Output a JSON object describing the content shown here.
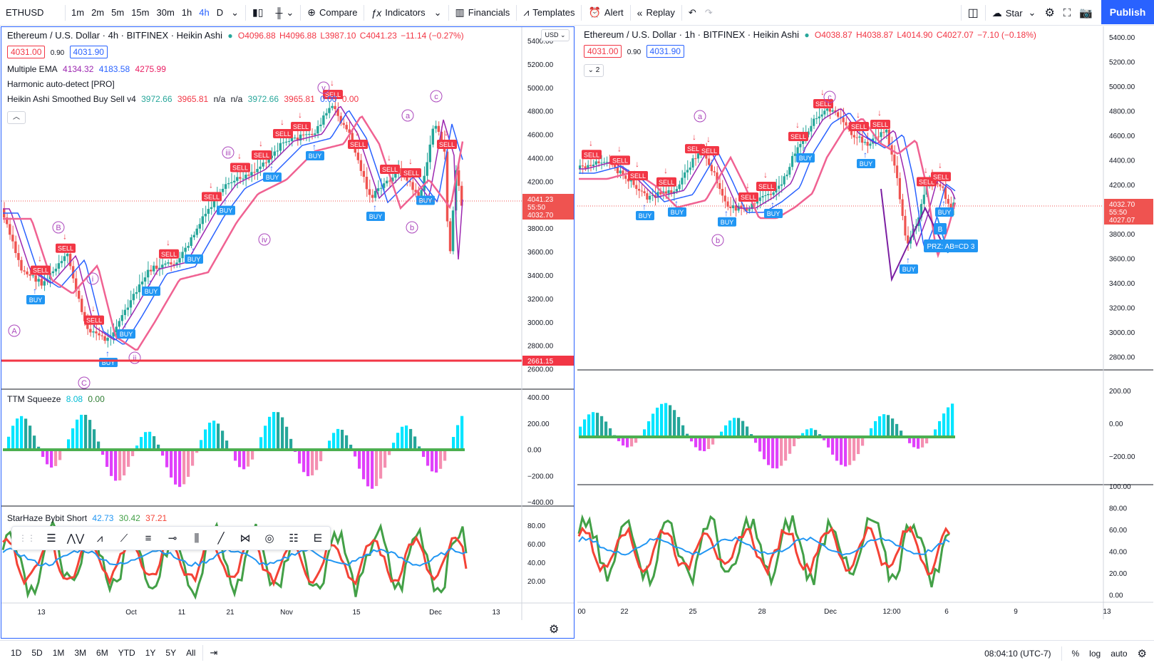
{
  "toolbar": {
    "symbol": "ETHUSD",
    "intervals": [
      "1m",
      "2m",
      "5m",
      "15m",
      "30m",
      "1h",
      "4h",
      "D"
    ],
    "active_interval": "4h",
    "compare": "Compare",
    "indicators": "Indicators",
    "financials": "Financials",
    "templates": "Templates",
    "alert": "Alert",
    "replay": "Replay",
    "star": "Star",
    "publish": "Publish"
  },
  "left_chart": {
    "title": "Ethereum / U.S. Dollar · 4h · BITFINEX · Heikin Ashi",
    "ohlc": {
      "o": "O4096.88",
      "h": "H4096.88",
      "l": "L3987.10",
      "c": "C4041.23",
      "chg": "−11.14 (−0.27%)"
    },
    "bid": "4031.00",
    "spread": "0.90",
    "ask": "4031.90",
    "ema_label": "Multiple EMA",
    "ema_values": [
      "4134.32",
      "4183.58",
      "4275.99"
    ],
    "harmonic_label": "Harmonic auto-detect [PRO]",
    "heikin_label": "Heikin Ashi Smoothed Buy Sell v4",
    "heikin_values": [
      "3972.66",
      "3965.81",
      "n/a",
      "n/a",
      "3972.66",
      "3965.81",
      "0.00",
      "0.00"
    ],
    "currency": "USD",
    "price_axis": [
      "5400.00",
      "5200.00",
      "5000.00",
      "4800.00",
      "4600.00",
      "4400.00",
      "4200.00",
      "4000.00",
      "3800.00",
      "3600.00",
      "3400.00",
      "3200.00",
      "3000.00",
      "2800.00",
      "2600.00"
    ],
    "last_price": "4041.23",
    "countdown": "55:50",
    "bid_tag": "4032.70",
    "hline_price": "2661.15",
    "ttm_label": "TTM Squeeze",
    "ttm_values": [
      "8.08",
      "0.00"
    ],
    "ttm_axis": [
      "400.00",
      "200.00",
      "0.00",
      "−200.00",
      "−400.00"
    ],
    "star_label": "StarHaze Bybit Short",
    "star_values": [
      "42.73",
      "30.42",
      "37.21"
    ],
    "star_axis": [
      "80.00",
      "60.00",
      "40.00",
      "20.00"
    ],
    "time_axis": [
      "13",
      "Oct",
      "11",
      "21",
      "Nov",
      "15",
      "Dec",
      "13"
    ],
    "wave_labels": [
      "v",
      "iii",
      "iv",
      "i",
      "ii",
      "a",
      "b",
      "c",
      "A",
      "B",
      "C"
    ],
    "signal_sell": "SELL",
    "signal_buy": "BUY"
  },
  "right_chart": {
    "title": "Ethereum / U.S. Dollar · 1h · BITFINEX · Heikin Ashi",
    "ohlc": {
      "o": "O4038.87",
      "h": "H4038.87",
      "l": "L4014.90",
      "c": "C4027.07",
      "chg": "−7.10 (−0.18%)"
    },
    "bid": "4031.00",
    "spread": "0.90",
    "ask": "4031.90",
    "hidden_count": "2",
    "price_axis": [
      "5400.00",
      "5200.00",
      "5000.00",
      "4800.00",
      "4600.00",
      "4400.00",
      "4200.00",
      "4000.00",
      "3800.00",
      "3600.00",
      "3400.00",
      "3200.00",
      "3000.00",
      "2800.00"
    ],
    "last_price": "4032.70",
    "bid_tag": "4027.07",
    "countdown": "55:50",
    "ttm_axis": [
      "200.00",
      "0.00",
      "−200.00"
    ],
    "star_axis": [
      "100.00",
      "80.00",
      "60.00",
      "40.00",
      "20.00",
      "0.00"
    ],
    "time_axis": [
      "00",
      "22",
      "25",
      "28",
      "Dec",
      "12:00",
      "6",
      "9",
      "13"
    ],
    "prz_label": "PRZ: AB=CD 3",
    "prz_point": "B",
    "wave_labels": [
      "a",
      "b",
      "c"
    ]
  },
  "bottom": {
    "ranges": [
      "1D",
      "5D",
      "1M",
      "3M",
      "6M",
      "YTD",
      "1Y",
      "5Y",
      "All"
    ],
    "time": "08:04:10 (UTC-7)",
    "percent": "%",
    "log": "log",
    "auto": "auto"
  },
  "colors": {
    "accent": "#2962ff",
    "up": "#26a69a",
    "down": "#ef5350",
    "ema_pink": "#e91e63",
    "sell": "#f23645",
    "buy": "#2196f3"
  }
}
